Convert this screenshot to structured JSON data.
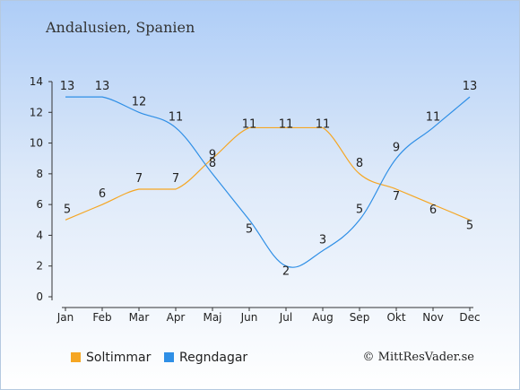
{
  "chart_data": {
    "type": "line",
    "title": "Andalusien, Spanien",
    "categories": [
      "Jan",
      "Feb",
      "Mar",
      "Apr",
      "Maj",
      "Jun",
      "Jul",
      "Aug",
      "Sep",
      "Okt",
      "Nov",
      "Dec"
    ],
    "ylim": [
      0,
      14
    ],
    "yticks": [
      0,
      2,
      4,
      6,
      8,
      10,
      12,
      14
    ],
    "grid": false,
    "legend_placement": "bottom-left",
    "series": [
      {
        "name": "Soltimmar",
        "color": "#f5a623",
        "values": [
          5,
          6,
          7,
          7,
          9,
          11,
          11,
          11,
          8,
          7,
          6,
          5
        ]
      },
      {
        "name": "Regndagar",
        "color": "#2f8fe6",
        "values": [
          13,
          13,
          12,
          11,
          8,
          5,
          2,
          3,
          5,
          9,
          11,
          13
        ]
      }
    ]
  },
  "credit": "© MittResVader.se"
}
